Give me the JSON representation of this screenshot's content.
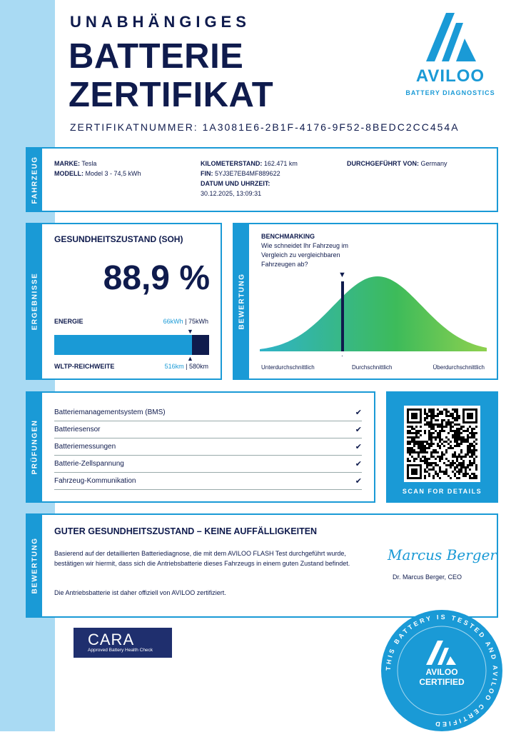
{
  "header": {
    "subtitle": "UNABHÄNGIGES",
    "title_line1": "BATTERIE",
    "title_line2": "ZERTIFIKAT",
    "cert_label": "ZERTIFIKATNUMMER:",
    "cert_number": "1A3081E6-2B1F-4176-9F52-8BEDC2CC454A"
  },
  "brand": {
    "name": "AVILOO",
    "tagline": "BATTERY DIAGNOSTICS",
    "color": "#1a9ad6"
  },
  "vehicle": {
    "side_label": "FAHRZEUG",
    "make_label": "MARKE:",
    "make": "Tesla",
    "model_label": "MODELL:",
    "model": "Model 3 - 74,5 kWh",
    "mileage_label": "KILOMETERSTAND:",
    "mileage": "162.471 km",
    "vin_label": "FIN:",
    "vin": "5YJ3E7EB4MF889622",
    "datetime_label": "DATUM UND UHRZEIT:",
    "datetime": "30.12.2025, 13:09:31",
    "performed_label": "DURCHGEFÜHRT VON:",
    "performed_by": "Germany"
  },
  "results": {
    "side_label": "ERGEBNISSE",
    "soh_title": "GESUNDHEITSZUSTAND (SOH)",
    "soh_value": "88,9 %",
    "energy_label": "ENERGIE",
    "energy_current": "66kWh",
    "energy_sep": " | ",
    "energy_nominal": "75kWh",
    "range_label": "WLTP-REICHWEITE",
    "range_current": "516km",
    "range_nominal": "580km",
    "fill_percent": 88.9
  },
  "benchmark": {
    "side_label": "BEWERTUNG",
    "title": "BENCHMARKING",
    "question": "Wie schneidet Ihr Fahrzeug im Vergleich zu vergleichbaren Fahrzeugen ab?",
    "label_low": "Unterdurchschnittlich",
    "label_mid": "Durchschnittlich",
    "label_high": "Überdurchschnittlich"
  },
  "checks": {
    "side_label": "PRÜFUNGEN",
    "items": [
      {
        "label": "Batteriemanagementsystem (BMS)",
        "passed": true
      },
      {
        "label": "Batteriesensor",
        "passed": true
      },
      {
        "label": "Batteriemessungen",
        "passed": true
      },
      {
        "label": "Batterie-Zellspannung",
        "passed": true
      },
      {
        "label": "Fahrzeug-Kommunikation",
        "passed": true
      }
    ],
    "check_icon": "✔"
  },
  "qr": {
    "label": "SCAN FOR DETAILS"
  },
  "verdict": {
    "side_label": "BEWERTUNG",
    "title": "GUTER GESUNDHEITSZUSTAND – KEINE AUFFÄLLIGKEITEN",
    "para1": "Basierend auf der detaillierten Batteriediagnose, die mit dem AVILOO FLASH Test durchgeführt wurde, bestätigen wir hiermit, dass sich die Antriebsbatterie dieses Fahrzeugs in einem guten Zustand befindet.",
    "para2": "Die Antriebsbatterie ist daher offiziell von AVILOO zertifiziert.",
    "signature": "Marcus Berger",
    "signer": "Dr. Marcus Berger, CEO"
  },
  "cara": {
    "name": "CARA",
    "tagline": "Approved Battery Health Check"
  },
  "seal": {
    "ring_text": "THIS BATTERY IS TESTED AND AVILOO CERTIFIED",
    "brand": "AVILOO",
    "label": "CERTIFIED"
  }
}
